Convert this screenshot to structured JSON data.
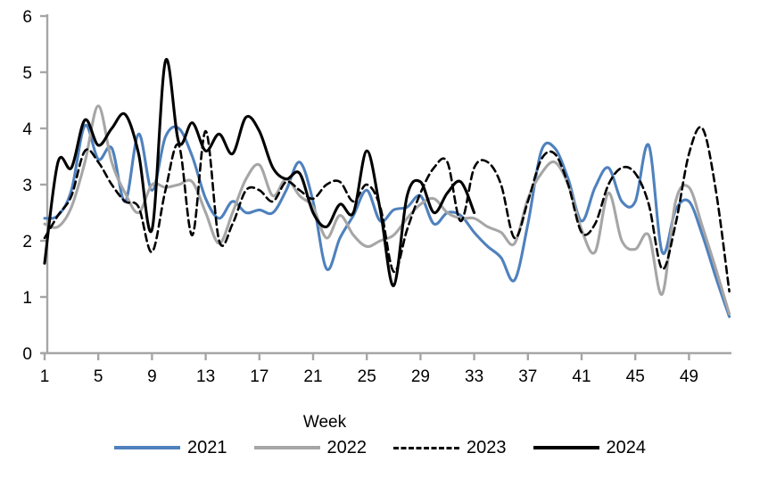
{
  "chart_data": {
    "type": "line",
    "title": "",
    "xlabel": "Week",
    "ylabel": "",
    "xlim": [
      1,
      52
    ],
    "ylim": [
      0,
      6
    ],
    "grid": false,
    "legend_position": "bottom",
    "axis_color": "#A6A6A6",
    "text_color": "#000000",
    "x_ticks": [
      1,
      5,
      9,
      13,
      17,
      21,
      25,
      29,
      33,
      37,
      41,
      45,
      49
    ],
    "y_ticks": [
      0,
      1,
      2,
      3,
      4,
      5,
      6
    ],
    "weeks": [
      1,
      2,
      3,
      4,
      5,
      6,
      7,
      8,
      9,
      10,
      11,
      12,
      13,
      14,
      15,
      16,
      17,
      18,
      19,
      20,
      21,
      22,
      23,
      24,
      25,
      26,
      27,
      28,
      29,
      30,
      31,
      32,
      33,
      34,
      35,
      36,
      37,
      38,
      39,
      40,
      41,
      42,
      43,
      44,
      45,
      46,
      47,
      48,
      49,
      50,
      51,
      52
    ],
    "series": [
      {
        "name": "2021",
        "color": "#4F81BD",
        "line_style": "solid",
        "values": [
          2.4,
          2.45,
          2.9,
          4.05,
          3.45,
          3.65,
          2.7,
          3.9,
          2.9,
          3.85,
          4.0,
          3.5,
          2.75,
          2.4,
          2.7,
          2.5,
          2.55,
          2.5,
          2.9,
          3.4,
          2.7,
          1.5,
          2.05,
          2.45,
          2.9,
          2.35,
          2.55,
          2.6,
          2.8,
          2.3,
          2.5,
          2.45,
          2.15,
          1.9,
          1.7,
          1.3,
          2.3,
          3.6,
          3.65,
          3.1,
          2.35,
          2.95,
          3.3,
          2.7,
          2.7,
          3.7,
          1.8,
          2.55,
          2.7,
          2.1,
          1.35,
          0.65
        ]
      },
      {
        "name": "2022",
        "color": "#A6A6A6",
        "line_style": "solid",
        "values": [
          2.3,
          2.25,
          2.6,
          3.4,
          4.4,
          3.4,
          2.85,
          2.5,
          3.0,
          2.95,
          3.0,
          3.05,
          2.5,
          1.95,
          2.5,
          3.1,
          3.35,
          2.8,
          3.1,
          2.8,
          2.6,
          2.05,
          2.45,
          2.1,
          1.9,
          2.0,
          2.1,
          2.4,
          2.65,
          2.75,
          2.5,
          2.4,
          2.4,
          2.25,
          2.15,
          1.95,
          2.75,
          3.2,
          3.4,
          3.0,
          2.2,
          1.8,
          2.85,
          2.0,
          1.85,
          2.1,
          1.05,
          2.7,
          2.95,
          2.25,
          1.5,
          0.7
        ]
      },
      {
        "name": "2023",
        "color": "#000000",
        "line_style": "dashed",
        "values": [
          2.05,
          2.45,
          2.8,
          3.6,
          3.4,
          3.0,
          2.7,
          2.6,
          1.8,
          2.9,
          3.7,
          2.1,
          3.95,
          2.0,
          2.3,
          2.9,
          2.9,
          2.7,
          3.05,
          2.9,
          2.75,
          3.0,
          3.05,
          2.7,
          3.0,
          2.6,
          1.45,
          2.2,
          2.85,
          3.3,
          3.4,
          2.35,
          3.3,
          3.4,
          3.0,
          2.05,
          2.7,
          3.45,
          3.55,
          3.0,
          2.15,
          2.3,
          3.0,
          3.3,
          3.2,
          2.65,
          1.5,
          2.3,
          3.55,
          4.0,
          2.9,
          1.1
        ]
      },
      {
        "name": "2024",
        "color": "#000000",
        "line_style": "solid",
        "values": [
          1.6,
          3.4,
          3.3,
          4.15,
          3.7,
          4.0,
          4.25,
          3.55,
          2.2,
          5.2,
          3.75,
          4.1,
          3.6,
          3.9,
          3.55,
          4.2,
          3.95,
          3.3,
          3.1,
          3.2,
          2.5,
          2.25,
          2.65,
          2.5,
          3.6,
          2.55,
          1.2,
          2.8,
          3.05,
          2.5,
          2.85,
          3.05,
          2.5
        ]
      }
    ]
  }
}
